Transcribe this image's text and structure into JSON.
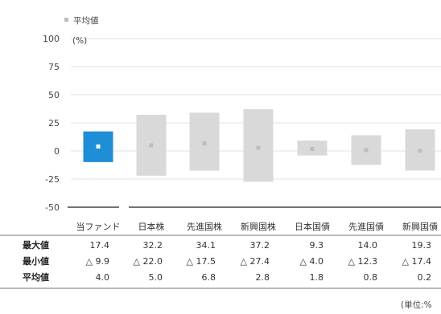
{
  "legend": {
    "mean_label": "平均値"
  },
  "note": "(単位:%",
  "colors": {
    "fund": "#1e8fd6",
    "range": "#d9d9d9",
    "mean_marker": "#ffffff",
    "axis": "#444444",
    "grid": "#e3e3e3"
  },
  "chart_data": {
    "type": "bar",
    "ylabel": "(%)",
    "ylim": [
      -50,
      100
    ],
    "yticks": [
      100,
      75,
      50,
      25,
      0,
      -25,
      -50
    ],
    "categories": [
      "当ファンド",
      "日本株",
      "先進国株",
      "新興国株",
      "日本国債",
      "先進国債",
      "新興国債"
    ],
    "series": [
      {
        "name": "最大値",
        "values": [
          17.4,
          32.2,
          34.1,
          37.2,
          9.3,
          14.0,
          19.3
        ]
      },
      {
        "name": "最小値",
        "values": [
          -9.9,
          -22.0,
          -17.5,
          -27.4,
          -4.0,
          -12.3,
          -17.4
        ]
      },
      {
        "name": "平均値",
        "values": [
          4.0,
          5.0,
          6.8,
          2.8,
          1.8,
          0.8,
          0.2
        ]
      }
    ]
  },
  "table": {
    "rows": [
      {
        "label": "最大値",
        "cells": [
          "17.4",
          "32.2",
          "34.1",
          "37.2",
          "9.3",
          "14.0",
          "19.3"
        ]
      },
      {
        "label": "最小値",
        "cells": [
          "△ 9.9",
          "△ 22.0",
          "△ 17.5",
          "△ 27.4",
          "△ 4.0",
          "△ 12.3",
          "△ 17.4"
        ]
      },
      {
        "label": "平均値",
        "cells": [
          "4.0",
          "5.0",
          "6.8",
          "2.8",
          "1.8",
          "0.8",
          "0.2"
        ]
      }
    ]
  }
}
